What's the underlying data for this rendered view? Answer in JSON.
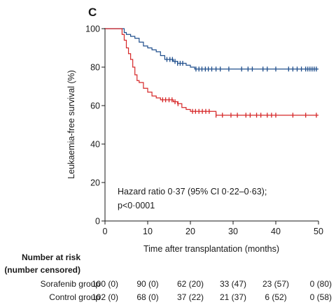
{
  "chart_data": {
    "type": "line",
    "panel_label": "C",
    "xlabel": "Time after transplantation (months)",
    "ylabel": "Leukaemia-free survival (%)",
    "xlim": [
      0,
      50
    ],
    "ylim": [
      0,
      100
    ],
    "xticks": [
      0,
      10,
      20,
      30,
      40,
      50
    ],
    "yticks": [
      0,
      20,
      40,
      60,
      80,
      100
    ],
    "annotation": [
      "Hazard ratio 0·37 (95% CI 0·22–0·63);",
      "p<0·0001"
    ],
    "series": [
      {
        "name": "Sorafenib group",
        "color": "#1f4e8c",
        "points": [
          [
            0,
            100
          ],
          [
            4,
            100
          ],
          [
            4.5,
            98
          ],
          [
            5,
            97
          ],
          [
            6,
            96
          ],
          [
            7,
            95
          ],
          [
            8,
            93
          ],
          [
            9,
            91
          ],
          [
            10,
            90
          ],
          [
            11,
            89
          ],
          [
            12,
            88
          ],
          [
            13,
            86
          ],
          [
            14,
            84
          ],
          [
            16,
            83
          ],
          [
            17,
            82
          ],
          [
            19,
            81
          ],
          [
            20,
            80
          ],
          [
            21,
            79
          ],
          [
            22,
            79
          ],
          [
            50,
            79
          ]
        ],
        "censored": [
          14.5,
          15.2,
          15.8,
          16.4,
          17,
          17.6,
          18.2,
          21.3,
          22,
          22.7,
          23.5,
          24.2,
          25,
          26,
          27,
          29,
          32,
          33.5,
          34.5,
          37,
          38,
          40,
          43,
          44,
          45,
          46,
          47,
          47.5,
          48,
          48.5,
          49,
          49.5
        ]
      },
      {
        "name": "Control group",
        "color": "#d62728",
        "points": [
          [
            0,
            100
          ],
          [
            3.5,
            100
          ],
          [
            4,
            97
          ],
          [
            4.5,
            94
          ],
          [
            5,
            90
          ],
          [
            5.5,
            87
          ],
          [
            6,
            84
          ],
          [
            6.5,
            80
          ],
          [
            7,
            76
          ],
          [
            7.5,
            73
          ],
          [
            8,
            72
          ],
          [
            9,
            69
          ],
          [
            10,
            67
          ],
          [
            11,
            65
          ],
          [
            12,
            64
          ],
          [
            13,
            63
          ],
          [
            14,
            63
          ],
          [
            16,
            62
          ],
          [
            17,
            61
          ],
          [
            18,
            59
          ],
          [
            19,
            58
          ],
          [
            20,
            57
          ],
          [
            25,
            57
          ],
          [
            26,
            55
          ],
          [
            50,
            55
          ]
        ],
        "censored": [
          13.5,
          14.2,
          15,
          15.7,
          16.4,
          17.1,
          20.5,
          21.2,
          22,
          22.8,
          23.6,
          24.4,
          26,
          27.5,
          29.5,
          31,
          33,
          34,
          35.5,
          36.5,
          38,
          39,
          40,
          44,
          47,
          49.5
        ]
      }
    ]
  },
  "risk_table": {
    "title_line1": "Number at risk",
    "title_line2": "(number censored)",
    "rows": [
      {
        "label": "Sorafenib group",
        "cells": [
          "100 (0)",
          "90 (0)",
          "62 (20)",
          "33 (47)",
          "23 (57)",
          "0 (80)"
        ]
      },
      {
        "label": "Control group",
        "cells": [
          "102 (0)",
          "68 (0)",
          "37 (22)",
          "21 (37)",
          "6 (52)",
          "0 (58)"
        ]
      }
    ]
  }
}
